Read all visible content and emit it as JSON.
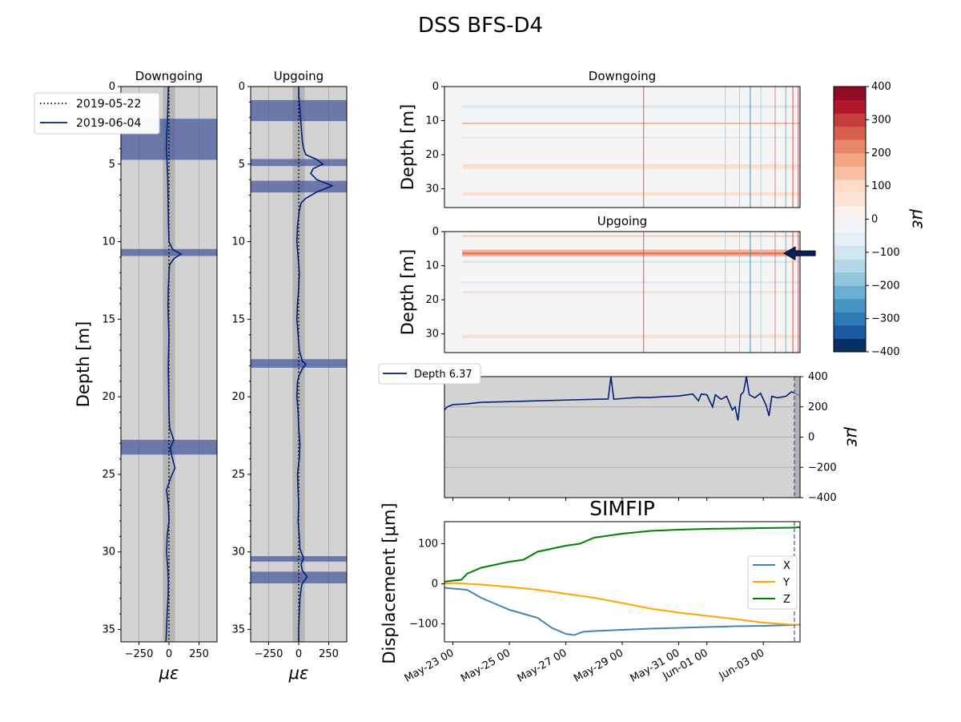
{
  "figure": {
    "title": "DSS BFS-D4"
  },
  "colors": {
    "dark_navy": "#001f7a",
    "band_fill": "#4a5a9c",
    "panel_bg": "#d3d3d3",
    "dark_gray_band": "#a9a9a9",
    "x_color": "#4682b4",
    "y_color": "#ffa500",
    "z_color": "#008000",
    "arrow_fill": "#0a1f5c"
  },
  "chart_data": [
    {
      "id": "profile-downgoing",
      "type": "line",
      "title": "Downgoing",
      "xlabel": "με",
      "ylabel": "Depth [m]",
      "xlim": [
        -400,
        400
      ],
      "ylim": [
        35.8,
        0
      ],
      "xticks": [
        -250,
        0,
        250
      ],
      "yticks": [
        0,
        5,
        10,
        15,
        20,
        25,
        30,
        35
      ],
      "grid": "vertical",
      "legend": {
        "position": "top-left",
        "entries": [
          "2019-05-22",
          "2019-06-04"
        ]
      },
      "noise_band": [
        -50,
        50
      ],
      "highlight_depths": [
        [
          2.1,
          4.7
        ],
        [
          10.5,
          10.9
        ],
        [
          22.8,
          23.7
        ]
      ],
      "series": [
        {
          "name": "2019-05-22",
          "style": "dotted",
          "points": [
            [
              0,
              0
            ],
            [
              0,
              35.8
            ]
          ]
        },
        {
          "name": "2019-06-04",
          "style": "solid",
          "points": [
            [
              -5,
              0
            ],
            [
              -8,
              1
            ],
            [
              -12,
              2
            ],
            [
              -18,
              3
            ],
            [
              -22,
              4
            ],
            [
              -15,
              5
            ],
            [
              -10,
              6
            ],
            [
              -8,
              7
            ],
            [
              -6,
              8
            ],
            [
              -4,
              9
            ],
            [
              0,
              10
            ],
            [
              30,
              10.5
            ],
            [
              100,
              10.8
            ],
            [
              40,
              11.1
            ],
            [
              5,
              11.5
            ],
            [
              0,
              12
            ],
            [
              -5,
              13
            ],
            [
              -8,
              14
            ],
            [
              -5,
              15
            ],
            [
              0,
              16
            ],
            [
              -3,
              17
            ],
            [
              -6,
              18
            ],
            [
              -4,
              19
            ],
            [
              -2,
              20
            ],
            [
              0,
              21
            ],
            [
              5,
              22
            ],
            [
              40,
              22.8
            ],
            [
              10,
              23.3
            ],
            [
              20,
              23.7
            ],
            [
              50,
              24.6
            ],
            [
              15,
              25.2
            ],
            [
              -20,
              26
            ],
            [
              -5,
              27
            ],
            [
              0,
              28
            ],
            [
              -15,
              29
            ],
            [
              -20,
              30
            ],
            [
              -10,
              31
            ],
            [
              -5,
              32
            ],
            [
              -8,
              33
            ],
            [
              -15,
              34
            ],
            [
              -20,
              35
            ],
            [
              -25,
              35.8
            ]
          ]
        }
      ]
    },
    {
      "id": "profile-upgoing",
      "type": "line",
      "title": "Upgoing",
      "xlabel": "με",
      "ylabel": "",
      "xlim": [
        -400,
        400
      ],
      "ylim": [
        35.8,
        0
      ],
      "xticks": [
        -250,
        0,
        250
      ],
      "yticks": [
        0,
        5,
        10,
        15,
        20,
        25,
        30,
        35
      ],
      "grid": "vertical",
      "noise_band": [
        -50,
        50
      ],
      "highlight_depths": [
        [
          0.9,
          2.2
        ],
        [
          4.7,
          5.1
        ],
        [
          6.1,
          6.8
        ],
        [
          17.6,
          18.1
        ],
        [
          30.3,
          30.6
        ],
        [
          31.3,
          32.0
        ]
      ],
      "series": [
        {
          "name": "2019-05-22",
          "style": "dotted",
          "points": [
            [
              0,
              0
            ],
            [
              0,
              35.8
            ]
          ]
        },
        {
          "name": "2019-06-04",
          "style": "solid",
          "points": [
            [
              0,
              0
            ],
            [
              0,
              0.5
            ],
            [
              5,
              1
            ],
            [
              10,
              1.5
            ],
            [
              15,
              2
            ],
            [
              20,
              2.5
            ],
            [
              25,
              3
            ],
            [
              30,
              3.5
            ],
            [
              40,
              4
            ],
            [
              60,
              4.4
            ],
            [
              150,
              4.7
            ],
            [
              200,
              5.0
            ],
            [
              120,
              5.3
            ],
            [
              100,
              5.6
            ],
            [
              150,
              6.0
            ],
            [
              280,
              6.4
            ],
            [
              150,
              6.8
            ],
            [
              60,
              7.2
            ],
            [
              20,
              7.5
            ],
            [
              5,
              8
            ],
            [
              -10,
              9
            ],
            [
              -15,
              10
            ],
            [
              -5,
              11
            ],
            [
              5,
              12
            ],
            [
              0,
              13
            ],
            [
              -10,
              14
            ],
            [
              -15,
              15
            ],
            [
              -5,
              16
            ],
            [
              5,
              17
            ],
            [
              30,
              17.7
            ],
            [
              60,
              17.9
            ],
            [
              30,
              18.2
            ],
            [
              5,
              18.6
            ],
            [
              -10,
              19
            ],
            [
              -15,
              20
            ],
            [
              -5,
              21
            ],
            [
              0,
              22
            ],
            [
              10,
              23
            ],
            [
              5,
              24
            ],
            [
              -10,
              25
            ],
            [
              -5,
              26
            ],
            [
              0,
              27
            ],
            [
              -5,
              28
            ],
            [
              5,
              29
            ],
            [
              10,
              29.8
            ],
            [
              40,
              30.4
            ],
            [
              20,
              30.8
            ],
            [
              30,
              31.2
            ],
            [
              70,
              31.6
            ],
            [
              25,
              32.1
            ],
            [
              10,
              33
            ],
            [
              5,
              34
            ],
            [
              0,
              35
            ],
            [
              0,
              35.8
            ]
          ]
        }
      ]
    },
    {
      "id": "heatmap-downgoing",
      "type": "heatmap",
      "title": "Downgoing",
      "xlabel": "",
      "ylabel": "Depth [m]",
      "ylim": [
        35.5,
        0
      ],
      "yticks": [
        0,
        10,
        20,
        30
      ],
      "colormap": "RdBu_r"
    },
    {
      "id": "heatmap-upgoing",
      "type": "heatmap",
      "title": "Upgoing",
      "xlabel": "",
      "ylabel": "Depth [m]",
      "ylim": [
        35.5,
        0
      ],
      "yticks": [
        0,
        10,
        20,
        30
      ],
      "colormap": "RdBu_r",
      "annotation": "arrow at depth 6.37"
    },
    {
      "id": "colorbar",
      "type": "heatmap",
      "label": "με",
      "range": [
        -400,
        400
      ],
      "ticks": [
        400,
        300,
        200,
        100,
        0,
        -100,
        -200,
        -300,
        -400
      ],
      "levels": 20
    },
    {
      "id": "timeseries-depth",
      "type": "line",
      "legend": {
        "position": "top-left",
        "entries": [
          "Depth 6.37"
        ]
      },
      "ylabel": "με",
      "ylim": [
        -400,
        400
      ],
      "yticks": [
        400,
        200,
        0,
        -200,
        -400
      ],
      "grid": "horizontal",
      "x_range_days": [
        -0.3,
        12.3
      ],
      "series": [
        {
          "name": "Depth 6.37",
          "points": [
            [
              -0.3,
              180
            ],
            [
              -0.2,
              200
            ],
            [
              0,
              215
            ],
            [
              0.5,
              220
            ],
            [
              1,
              230
            ],
            [
              2,
              235
            ],
            [
              3,
              240
            ],
            [
              4,
              245
            ],
            [
              5,
              250
            ],
            [
              5.5,
              252
            ],
            [
              5.6,
              400
            ],
            [
              5.7,
              250
            ],
            [
              6,
              255
            ],
            [
              6.5,
              262
            ],
            [
              7,
              262
            ],
            [
              7.5,
              268
            ],
            [
              8,
              272
            ],
            [
              8.3,
              280
            ],
            [
              8.5,
              285
            ],
            [
              8.7,
              240
            ],
            [
              8.8,
              285
            ],
            [
              9,
              280
            ],
            [
              9.2,
              200
            ],
            [
              9.3,
              280
            ],
            [
              9.5,
              250
            ],
            [
              9.7,
              270
            ],
            [
              9.9,
              180
            ],
            [
              10.0,
              200
            ],
            [
              10.1,
              110
            ],
            [
              10.2,
              280
            ],
            [
              10.3,
              300
            ],
            [
              10.4,
              400
            ],
            [
              10.5,
              280
            ],
            [
              10.7,
              260
            ],
            [
              10.9,
              290
            ],
            [
              11.1,
              210
            ],
            [
              11.2,
              140
            ],
            [
              11.3,
              270
            ],
            [
              11.5,
              260
            ],
            [
              11.8,
              270
            ],
            [
              12.0,
              300
            ],
            [
              12.3,
              275
            ]
          ]
        }
      ],
      "marker_day": 12.1
    },
    {
      "id": "simfip",
      "type": "line",
      "title": "SIMFIP",
      "xlabel": "",
      "ylabel": "Displacement [μm]",
      "ylim": [
        -145,
        155
      ],
      "yticks": [
        100,
        0,
        -100
      ],
      "x_range_days": [
        -0.3,
        12.3
      ],
      "xticks": [
        "May-23 00",
        "May-25 00",
        "May-27 00",
        "May-29 00",
        "May-31 00",
        "Jun-01 00",
        "Jun-03 00"
      ],
      "xtick_days": [
        0,
        2,
        4,
        6,
        8,
        9,
        11
      ],
      "legend": {
        "position": "right",
        "entries": [
          "X",
          "Y",
          "Z"
        ]
      },
      "marker_day": 12.1,
      "series": [
        {
          "name": "X",
          "color": "#4682b4",
          "points": [
            [
              -0.3,
              -10
            ],
            [
              0,
              -12
            ],
            [
              0.5,
              -15
            ],
            [
              1,
              -35
            ],
            [
              1.5,
              -50
            ],
            [
              2,
              -65
            ],
            [
              2.5,
              -75
            ],
            [
              3,
              -85
            ],
            [
              3.5,
              -110
            ],
            [
              4,
              -125
            ],
            [
              4.3,
              -128
            ],
            [
              4.6,
              -120
            ],
            [
              5,
              -118
            ],
            [
              6,
              -115
            ],
            [
              7,
              -112
            ],
            [
              8,
              -110
            ],
            [
              9,
              -108
            ],
            [
              10,
              -106
            ],
            [
              11,
              -105
            ],
            [
              12,
              -103
            ],
            [
              12.3,
              -102
            ]
          ]
        },
        {
          "name": "Y",
          "color": "#ffa500",
          "points": [
            [
              -0.3,
              0
            ],
            [
              0,
              2
            ],
            [
              1,
              -2
            ],
            [
              2,
              -8
            ],
            [
              3,
              -15
            ],
            [
              4,
              -25
            ],
            [
              5,
              -35
            ],
            [
              6,
              -48
            ],
            [
              7,
              -62
            ],
            [
              8,
              -72
            ],
            [
              9,
              -80
            ],
            [
              10,
              -88
            ],
            [
              11,
              -97
            ],
            [
              12,
              -102
            ],
            [
              12.3,
              -103
            ]
          ]
        },
        {
          "name": "Z",
          "color": "#008000",
          "points": [
            [
              -0.3,
              5
            ],
            [
              0,
              8
            ],
            [
              0.3,
              10
            ],
            [
              0.5,
              25
            ],
            [
              1,
              40
            ],
            [
              2,
              55
            ],
            [
              2.5,
              60
            ],
            [
              3,
              80
            ],
            [
              4,
              95
            ],
            [
              4.5,
              100
            ],
            [
              5,
              115
            ],
            [
              6,
              125
            ],
            [
              7,
              132
            ],
            [
              8,
              135
            ],
            [
              9,
              137
            ],
            [
              10,
              138
            ],
            [
              11,
              139
            ],
            [
              12,
              140
            ],
            [
              12.3,
              141
            ]
          ]
        }
      ]
    }
  ]
}
